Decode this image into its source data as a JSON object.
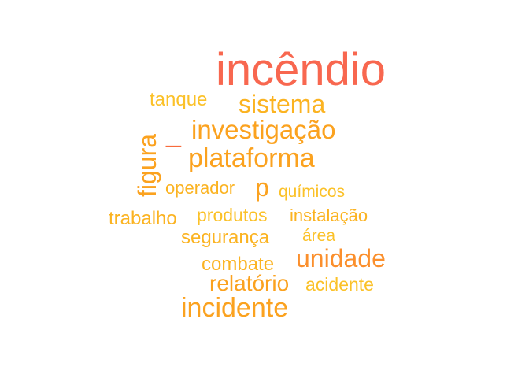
{
  "colors": {
    "background": "#ffffff",
    "primary_word": "#f8674f",
    "tier_orange": "#fb8f2c",
    "tier_amber": "#fba21f",
    "tier_gold": "#fbb321",
    "tier_yellow": "#fbc128"
  },
  "words": [
    {
      "text": "incêndio",
      "color": "#f8674f"
    },
    {
      "text": "sistema",
      "color": "#fbb321"
    },
    {
      "text": "tanque",
      "color": "#fbc128"
    },
    {
      "text": "_",
      "color": "#f86b3c"
    },
    {
      "text": "investigação",
      "color": "#fba21f"
    },
    {
      "text": "figura",
      "color": "#fba21f"
    },
    {
      "text": "plataforma",
      "color": "#fba21f"
    },
    {
      "text": "operador",
      "color": "#fbb321"
    },
    {
      "text": "p",
      "color": "#fba21f"
    },
    {
      "text": "químicos",
      "color": "#fbc128"
    },
    {
      "text": "trabalho",
      "color": "#fbb321"
    },
    {
      "text": "produtos",
      "color": "#fbc128"
    },
    {
      "text": "instalação",
      "color": "#fbb321"
    },
    {
      "text": "segurança",
      "color": "#fbb321"
    },
    {
      "text": "área",
      "color": "#fbc128"
    },
    {
      "text": "combate",
      "color": "#fbb321"
    },
    {
      "text": "unidade",
      "color": "#fb8f2c"
    },
    {
      "text": "relatório",
      "color": "#fba21f"
    },
    {
      "text": "acidente",
      "color": "#fbc128"
    },
    {
      "text": "incidente",
      "color": "#fba21f"
    }
  ]
}
